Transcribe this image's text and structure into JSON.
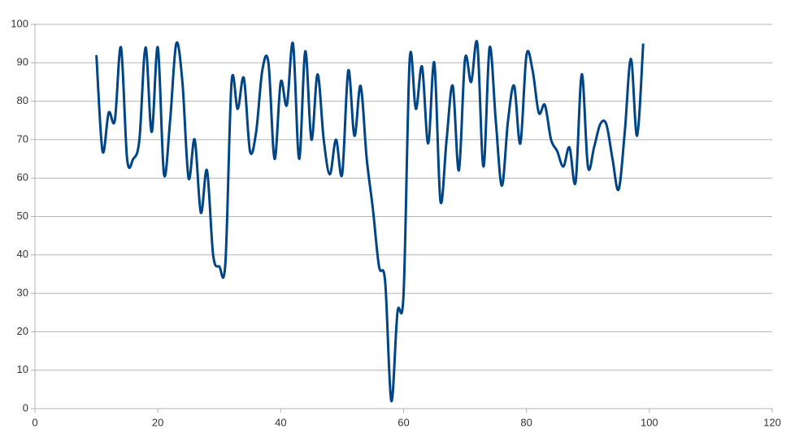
{
  "chart_data": {
    "type": "line",
    "x": [
      10,
      11,
      12,
      13,
      14,
      15,
      16,
      17,
      18,
      19,
      20,
      21,
      22,
      23,
      24,
      25,
      26,
      27,
      28,
      29,
      30,
      31,
      32,
      33,
      34,
      35,
      36,
      37,
      38,
      39,
      40,
      41,
      42,
      43,
      44,
      45,
      46,
      47,
      48,
      49,
      50,
      51,
      52,
      53,
      54,
      55,
      56,
      57,
      58,
      59,
      60,
      61,
      62,
      63,
      64,
      65,
      66,
      67,
      68,
      69,
      70,
      71,
      72,
      73,
      74,
      75,
      76,
      77,
      78,
      79,
      80,
      81,
      82,
      83,
      84,
      85,
      86,
      87,
      88,
      89,
      90,
      91,
      92,
      93,
      94,
      95,
      96,
      97,
      98,
      99
    ],
    "series": [
      {
        "color": "#004586",
        "values": [
          92,
          67,
          77,
          75,
          94,
          65,
          65,
          70,
          94,
          72,
          94,
          61,
          75,
          95,
          85,
          60,
          70,
          51,
          62,
          40,
          37,
          38,
          85,
          78,
          86,
          67,
          72,
          88,
          90,
          65,
          85,
          79,
          95,
          65,
          93,
          70,
          87,
          70,
          61,
          70,
          61,
          88,
          71,
          84,
          65,
          52,
          37,
          33,
          2,
          25,
          30,
          91,
          78,
          89,
          69,
          90,
          54,
          70,
          84,
          62,
          91,
          85,
          95,
          63,
          94,
          75,
          58,
          75,
          84,
          69,
          92,
          88,
          77,
          79,
          70,
          67,
          63,
          68,
          59,
          87,
          63,
          68,
          74,
          74,
          65,
          57,
          72,
          91,
          71,
          95
        ]
      }
    ],
    "xlim": [
      0,
      120
    ],
    "xticks": [
      0,
      20,
      40,
      60,
      80,
      100,
      120
    ],
    "ylim": [
      0,
      100
    ],
    "yticks": [
      0,
      10,
      20,
      30,
      40,
      50,
      60,
      70,
      80,
      90,
      100
    ],
    "grid": true
  }
}
